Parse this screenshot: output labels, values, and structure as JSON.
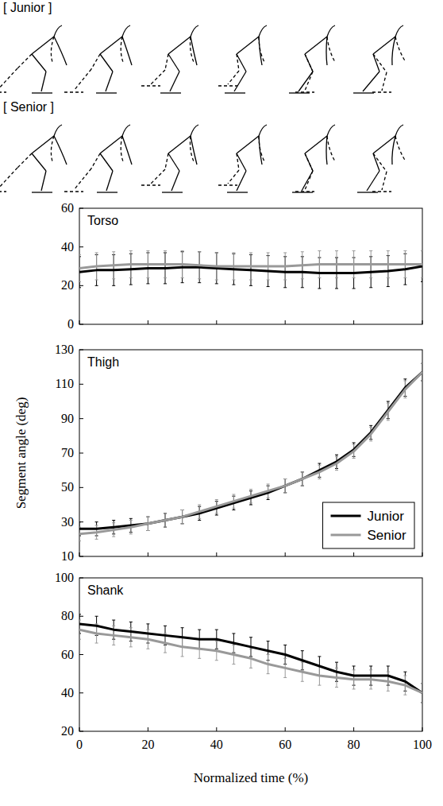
{
  "figure": {
    "labels": [
      "[ Junior ]",
      "[ Senior ]"
    ]
  },
  "chart_data": [
    {
      "type": "line",
      "title": "Torso",
      "x": [
        0,
        5,
        10,
        15,
        20,
        25,
        30,
        35,
        40,
        45,
        50,
        55,
        60,
        65,
        70,
        75,
        80,
        85,
        90,
        95,
        100
      ],
      "xlim": [
        0,
        100
      ],
      "xticks": [
        0,
        20,
        40,
        60,
        80,
        100
      ],
      "ylim": [
        0,
        60
      ],
      "yticks": [
        0,
        20,
        40,
        60
      ],
      "tick_labels": "y",
      "series": [
        {
          "color": "#000000",
          "values": [
            27,
            28,
            28,
            28.5,
            29,
            29,
            29.5,
            29.5,
            29,
            28.5,
            28,
            27.5,
            27,
            27,
            26.5,
            26.5,
            26.5,
            27,
            27.5,
            28.5,
            30
          ],
          "errors": [
            8,
            8,
            8,
            8,
            8,
            8,
            8,
            8,
            8,
            8,
            8,
            8,
            8,
            8,
            8,
            8,
            8,
            8,
            8,
            8,
            8
          ]
        },
        {
          "color": "#999999",
          "values": [
            29,
            30,
            30.5,
            31,
            31,
            31,
            31,
            30.5,
            30,
            30,
            30,
            30,
            30,
            30.5,
            31,
            31,
            31,
            31,
            31,
            31,
            31
          ],
          "errors": [
            7,
            7,
            7,
            7,
            7,
            7,
            7,
            7,
            7,
            7,
            7,
            7,
            7,
            7,
            7,
            7,
            7,
            7,
            7,
            7,
            7
          ]
        }
      ]
    },
    {
      "type": "line",
      "title": "Thigh",
      "ylabel": "Segment angle (deg)",
      "x": [
        0,
        5,
        10,
        15,
        20,
        25,
        30,
        35,
        40,
        45,
        50,
        55,
        60,
        65,
        70,
        75,
        80,
        85,
        90,
        95,
        100
      ],
      "xlim": [
        0,
        100
      ],
      "xticks": [
        0,
        20,
        40,
        60,
        80,
        100
      ],
      "ylim": [
        10,
        130
      ],
      "yticks": [
        10,
        30,
        50,
        70,
        90,
        110,
        130
      ],
      "tick_labels": "y",
      "legend": "lower right",
      "series": [
        {
          "name": "Junior",
          "color": "#000000",
          "values": [
            26,
            26,
            27,
            28,
            29,
            31,
            33,
            35,
            38,
            41,
            44,
            47,
            51,
            55,
            60,
            65,
            72,
            82,
            95,
            108,
            117
          ],
          "errors": [
            4,
            4,
            4,
            4,
            4,
            4,
            4,
            4,
            4,
            4,
            4,
            4,
            4,
            4,
            4,
            4,
            4,
            4,
            5,
            5,
            5
          ]
        },
        {
          "name": "Senior",
          "color": "#999999",
          "values": [
            23,
            24,
            25.5,
            27,
            29,
            31,
            33,
            36,
            39,
            42,
            45,
            48,
            51,
            55,
            59,
            64,
            71,
            81,
            94,
            107,
            117
          ],
          "errors": [
            4,
            4,
            4,
            4,
            4,
            4,
            4,
            4,
            4,
            4,
            4,
            4,
            4,
            4,
            4,
            4,
            4,
            4,
            5,
            5,
            5
          ]
        }
      ]
    },
    {
      "type": "line",
      "title": "Shank",
      "xlabel": "Normalized time (%)",
      "x": [
        0,
        5,
        10,
        15,
        20,
        25,
        30,
        35,
        40,
        45,
        50,
        55,
        60,
        65,
        70,
        75,
        80,
        85,
        90,
        95,
        100
      ],
      "xlim": [
        0,
        100
      ],
      "xticks": [
        0,
        20,
        40,
        60,
        80,
        100
      ],
      "ylim": [
        20,
        100
      ],
      "yticks": [
        20,
        40,
        60,
        80,
        100
      ],
      "series": [
        {
          "color": "#000000",
          "values": [
            76,
            75,
            73,
            72,
            71,
            70,
            69,
            68,
            68,
            66,
            64,
            62,
            60,
            57,
            54,
            51,
            49,
            49,
            49,
            46,
            40
          ],
          "errors": [
            5,
            5,
            5,
            5,
            5,
            5,
            5,
            5,
            5,
            5,
            5,
            5,
            5,
            5,
            5,
            5,
            5,
            5,
            5,
            5,
            5
          ]
        },
        {
          "color": "#999999",
          "values": [
            73,
            71,
            70,
            69,
            68,
            66,
            64,
            63,
            62,
            60,
            58,
            55,
            53,
            51,
            49,
            48,
            47,
            47,
            46,
            44,
            40
          ],
          "errors": [
            5,
            5,
            5,
            5,
            5,
            5,
            5,
            5,
            5,
            5,
            5,
            5,
            5,
            5,
            5,
            5,
            5,
            5,
            5,
            5,
            5
          ]
        }
      ]
    }
  ]
}
